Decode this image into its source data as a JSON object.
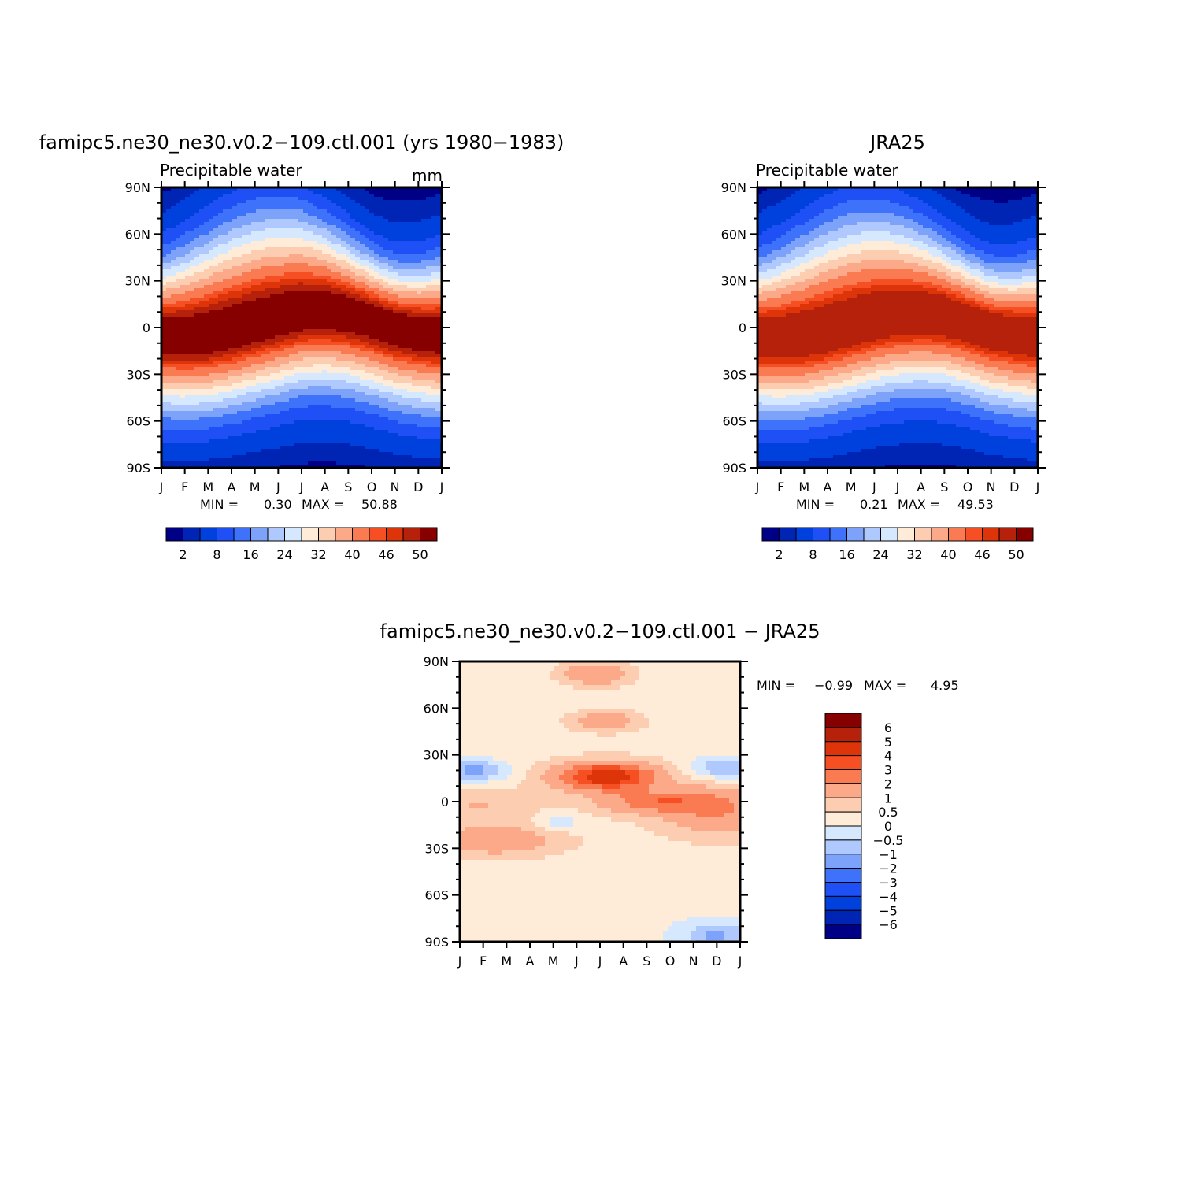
{
  "chart_data": [
    {
      "type": "heatmap",
      "title": "famipc5.ne30_ne30.v0.2−109.ctl.001 (yrs 1980−1983)",
      "subtitle_left": "Precipitable water",
      "subtitle_right": "mm",
      "x_tick_labels": [
        "J",
        "F",
        "M",
        "A",
        "M",
        "J",
        "J",
        "A",
        "S",
        "O",
        "N",
        "D",
        "J"
      ],
      "y_tick_labels": [
        "90N",
        "60N",
        "30N",
        "0",
        "30S",
        "60S",
        "90S"
      ],
      "ylim": [
        -90,
        90
      ],
      "stats": {
        "min_label": "MIN =",
        "min": "0.30",
        "max_label": "MAX =",
        "max": "50.88"
      },
      "colorbar": {
        "orientation": "horizontal",
        "labels": [
          "2",
          "8",
          "16",
          "24",
          "32",
          "40",
          "46",
          "50"
        ],
        "levels": [
          0,
          2,
          4,
          8,
          12,
          16,
          20,
          24,
          28,
          32,
          36,
          40,
          44,
          46,
          48,
          50,
          52
        ]
      },
      "field": {
        "months": [
          "Jan",
          "Feb",
          "Mar",
          "Apr",
          "May",
          "Jun",
          "Jul",
          "Aug",
          "Sep",
          "Oct",
          "Nov",
          "Dec"
        ],
        "equator_peak_latitude_deg": [
          -5,
          -6,
          -5,
          -2,
          2,
          6,
          10,
          11,
          9,
          5,
          0,
          -3
        ],
        "max_value_mm": 50.88
      }
    },
    {
      "type": "heatmap",
      "title": "JRA25",
      "subtitle_left": "Precipitable water",
      "x_tick_labels": [
        "J",
        "F",
        "M",
        "A",
        "M",
        "J",
        "J",
        "A",
        "S",
        "O",
        "N",
        "D",
        "J"
      ],
      "y_tick_labels": [
        "90N",
        "60N",
        "30N",
        "0",
        "30S",
        "60S",
        "90S"
      ],
      "ylim": [
        -90,
        90
      ],
      "stats": {
        "min_label": "MIN =",
        "min": "0.21",
        "max_label": "MAX =",
        "max": "49.53"
      },
      "colorbar": {
        "orientation": "horizontal",
        "labels": [
          "2",
          "8",
          "16",
          "24",
          "32",
          "40",
          "46",
          "50"
        ],
        "levels": [
          0,
          2,
          4,
          8,
          12,
          16,
          20,
          24,
          28,
          32,
          36,
          40,
          44,
          46,
          48,
          50,
          52
        ]
      },
      "field": {
        "months": [
          "Jan",
          "Feb",
          "Mar",
          "Apr",
          "May",
          "Jun",
          "Jul",
          "Aug",
          "Sep",
          "Oct",
          "Nov",
          "Dec"
        ],
        "equator_peak_latitude_deg": [
          -6,
          -7,
          -6,
          -3,
          1,
          5,
          8,
          9,
          8,
          4,
          -1,
          -4
        ],
        "max_value_mm": 49.53
      }
    },
    {
      "type": "heatmap",
      "title": "famipc5.ne30_ne30.v0.2−109.ctl.001 − JRA25",
      "x_tick_labels": [
        "J",
        "F",
        "M",
        "A",
        "M",
        "J",
        "J",
        "A",
        "S",
        "O",
        "N",
        "D",
        "J"
      ],
      "y_tick_labels": [
        "90N",
        "60N",
        "30N",
        "0",
        "30S",
        "60S",
        "90S"
      ],
      "ylim": [
        -90,
        90
      ],
      "stats": {
        "min_label": "MIN =",
        "min": "−0.99",
        "max_label": "MAX =",
        "max": "4.95"
      },
      "colorbar": {
        "orientation": "vertical",
        "labels": [
          "6",
          "5",
          "4",
          "3",
          "2",
          "1",
          "0.5",
          "0",
          "−0.5",
          "−1",
          "−2",
          "−3",
          "−4",
          "−5",
          "−6"
        ],
        "levels": [
          -7,
          -6,
          -5,
          -4,
          -3,
          -2,
          -1,
          -0.5,
          0,
          0.5,
          1,
          2,
          3,
          4,
          5,
          6,
          7
        ]
      }
    }
  ],
  "palette": [
    "#000087",
    "#0025b4",
    "#0040dc",
    "#1e50f5",
    "#3f72fa",
    "#7ca2fa",
    "#afc8fd",
    "#d6e8fe",
    "#feecd9",
    "#fdcdb1",
    "#fca98a",
    "#fa7a52",
    "#f54f23",
    "#dd3509",
    "#b5210b",
    "#870000"
  ]
}
